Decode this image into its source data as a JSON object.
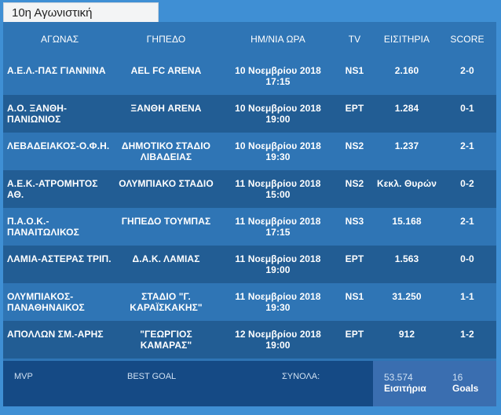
{
  "tab_title": "10η Αγωνιστική",
  "headers": {
    "match": "ΑΓΩΝΑΣ",
    "stadium": "ΓΗΠΕΔΟ",
    "date": "ΗΜ/ΝΙΑ ΩΡΑ",
    "tv": "TV",
    "tickets": "ΕΙΣΙΤΗΡΙΑ",
    "score": "SCORE"
  },
  "rows": [
    {
      "match1": "Α.Ε.Λ.-ΠΑΣ ΓΙΑΝΝΙΝΑ",
      "match2": "",
      "stadium1": "AEL FC ARENA",
      "stadium2": "",
      "date1": "10 Νοεμβρίου 2018",
      "date2": "17:15",
      "tv": "NS1",
      "tickets": "2.160",
      "score": "2-0"
    },
    {
      "match1": "Α.Ο. ΞΑΝΘΗ-",
      "match2": "ΠΑΝΙΩΝΙΟΣ",
      "stadium1": "ΞΑΝΘΗ ARENA",
      "stadium2": "",
      "date1": "10 Νοεμβρίου 2018",
      "date2": "19:00",
      "tv": "ΕΡΤ",
      "tickets": "1.284",
      "score": "0-1"
    },
    {
      "match1": "ΛΕΒΑΔΕΙΑΚΟΣ-Ο.Φ.Η.",
      "match2": "",
      "stadium1": "ΔΗΜΟΤΙΚΟ ΣΤΑΔΙΟ",
      "stadium2": "ΛΙΒΑΔΕΙΑΣ",
      "date1": "10 Νοεμβρίου 2018",
      "date2": "19:30",
      "tv": "NS2",
      "tickets": "1.237",
      "score": "2-1"
    },
    {
      "match1": "Α.Ε.Κ.-ΑΤΡΟΜΗΤΟΣ",
      "match2": "ΑΘ.",
      "stadium1": "ΟΛΥΜΠΙΑΚΟ ΣΤΑΔΙΟ",
      "stadium2": "",
      "date1": "11 Νοεμβρίου 2018",
      "date2": "15:00",
      "tv": "NS2",
      "tickets": "Κεκλ. Θυρών",
      "score": "0-2"
    },
    {
      "match1": "Π.Α.Ο.Κ.-",
      "match2": "ΠΑΝΑΙΤΩΛΙΚΟΣ",
      "stadium1": "ΓΗΠΕΔΟ ΤΟΥΜΠΑΣ",
      "stadium2": "",
      "date1": "11 Νοεμβρίου 2018",
      "date2": "17:15",
      "tv": "NS3",
      "tickets": "15.168",
      "score": "2-1"
    },
    {
      "match1": "ΛΑΜΙΑ-ΑΣΤΕΡΑΣ ΤΡΙΠ.",
      "match2": "",
      "stadium1": "Δ.Α.Κ. ΛΑΜΙΑΣ",
      "stadium2": "",
      "date1": "11 Νοεμβρίου 2018",
      "date2": "19:00",
      "tv": "ΕΡΤ",
      "tickets": "1.563",
      "score": "0-0"
    },
    {
      "match1": "ΟΛΥΜΠΙΑΚΟΣ-",
      "match2": "ΠΑΝΑΘΗΝΑΙΚΟΣ",
      "stadium1": "ΣΤΑΔΙΟ \"Γ.",
      "stadium2": "ΚΑΡΑΪΣΚΑΚΗΣ\"",
      "date1": "11 Νοεμβρίου 2018",
      "date2": "19:30",
      "tv": "NS1",
      "tickets": "31.250",
      "score": "1-1"
    },
    {
      "match1": "ΑΠΟΛΛΩΝ ΣΜ.-ΑΡΗΣ",
      "match2": "",
      "stadium1": "\"ΓΕΩΡΓΙΟΣ ΚΑΜΑΡΑΣ\"",
      "stadium2": "",
      "date1": "12 Νοεμβρίου 2018",
      "date2": "19:00",
      "tv": "ΕΡΤ",
      "tickets": "912",
      "score": "1-2"
    }
  ],
  "footer": {
    "mvp": "MVP",
    "best_goal": "BEST GOAL",
    "totals_label": "ΣΥΝΟΛΑ:",
    "tickets_total": "53.574",
    "tickets_word": "Εισιτήρια",
    "goals_total": "16",
    "goals_word": "Goals"
  }
}
